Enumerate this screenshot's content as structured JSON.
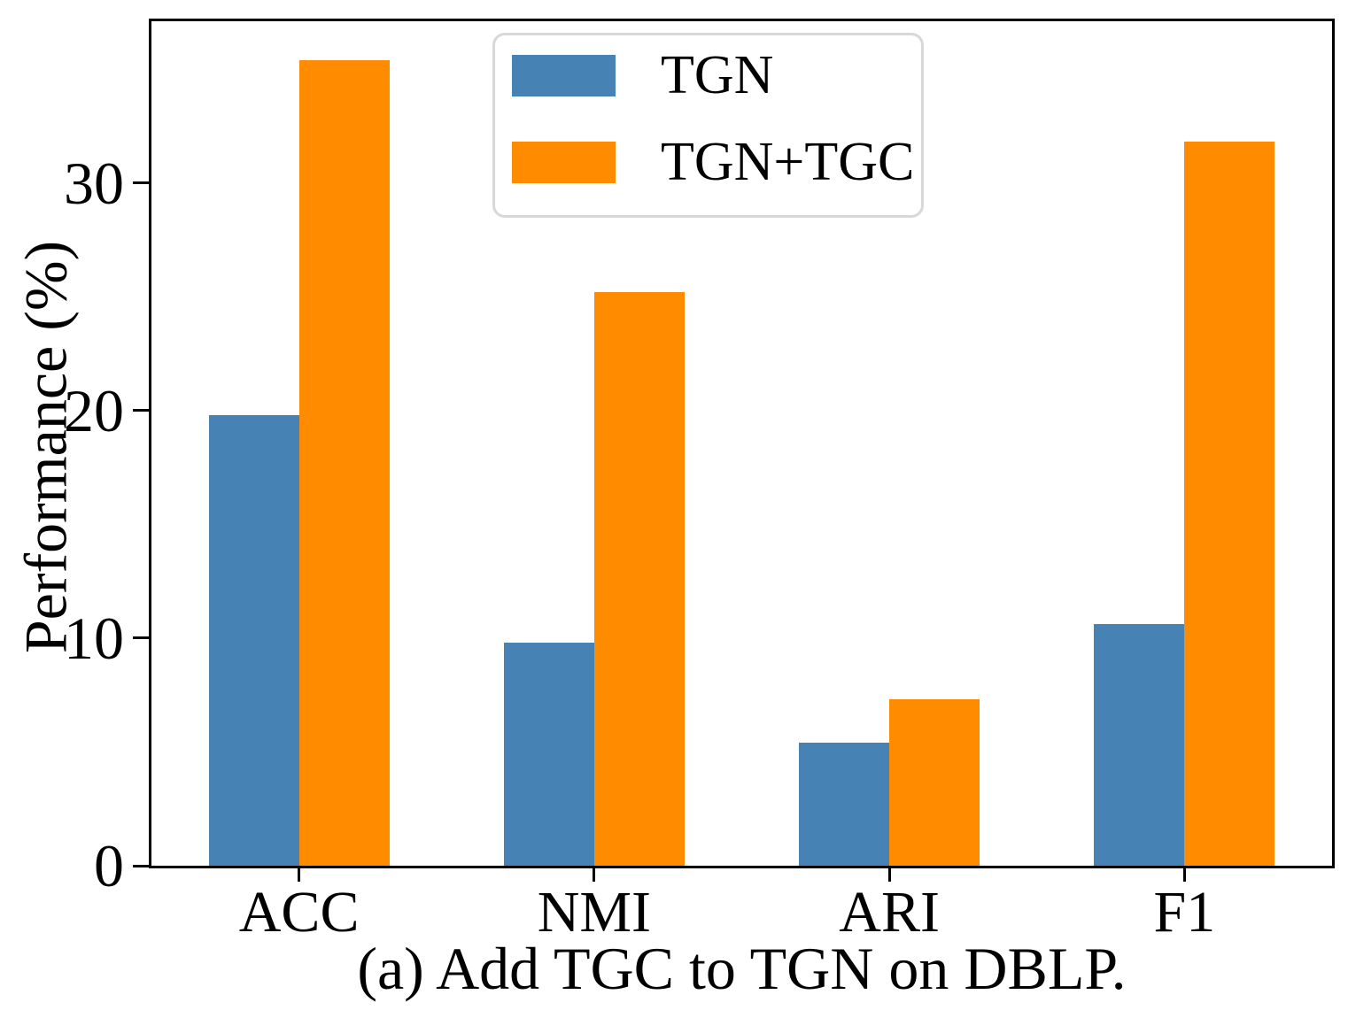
{
  "figure": {
    "caption": "(a) Add TGC to TGN on DBLP.",
    "ylabel": "Performance (%)"
  },
  "legend": {
    "items": [
      "TGN",
      "TGN+TGC"
    ]
  },
  "chart_data": {
    "type": "bar",
    "title": "",
    "xlabel": "",
    "ylabel": "Performance (%)",
    "categories": [
      "ACC",
      "NMI",
      "ARI",
      "F1"
    ],
    "series": [
      {
        "name": "TGN",
        "color": "#4682B4",
        "values": [
          19.8,
          9.8,
          5.4,
          10.6
        ]
      },
      {
        "name": "TGN+TGC",
        "color": "#FF8C00",
        "values": [
          35.4,
          25.2,
          7.3,
          31.8
        ]
      }
    ],
    "yticks": [
      0,
      10,
      20,
      30
    ],
    "ylim": [
      0,
      37.1
    ],
    "grid": false,
    "legend_position": "upper center, inside axes"
  },
  "colors": {
    "axis": "#000000",
    "legend_border": "#d8d8d8",
    "background": "#ffffff"
  }
}
